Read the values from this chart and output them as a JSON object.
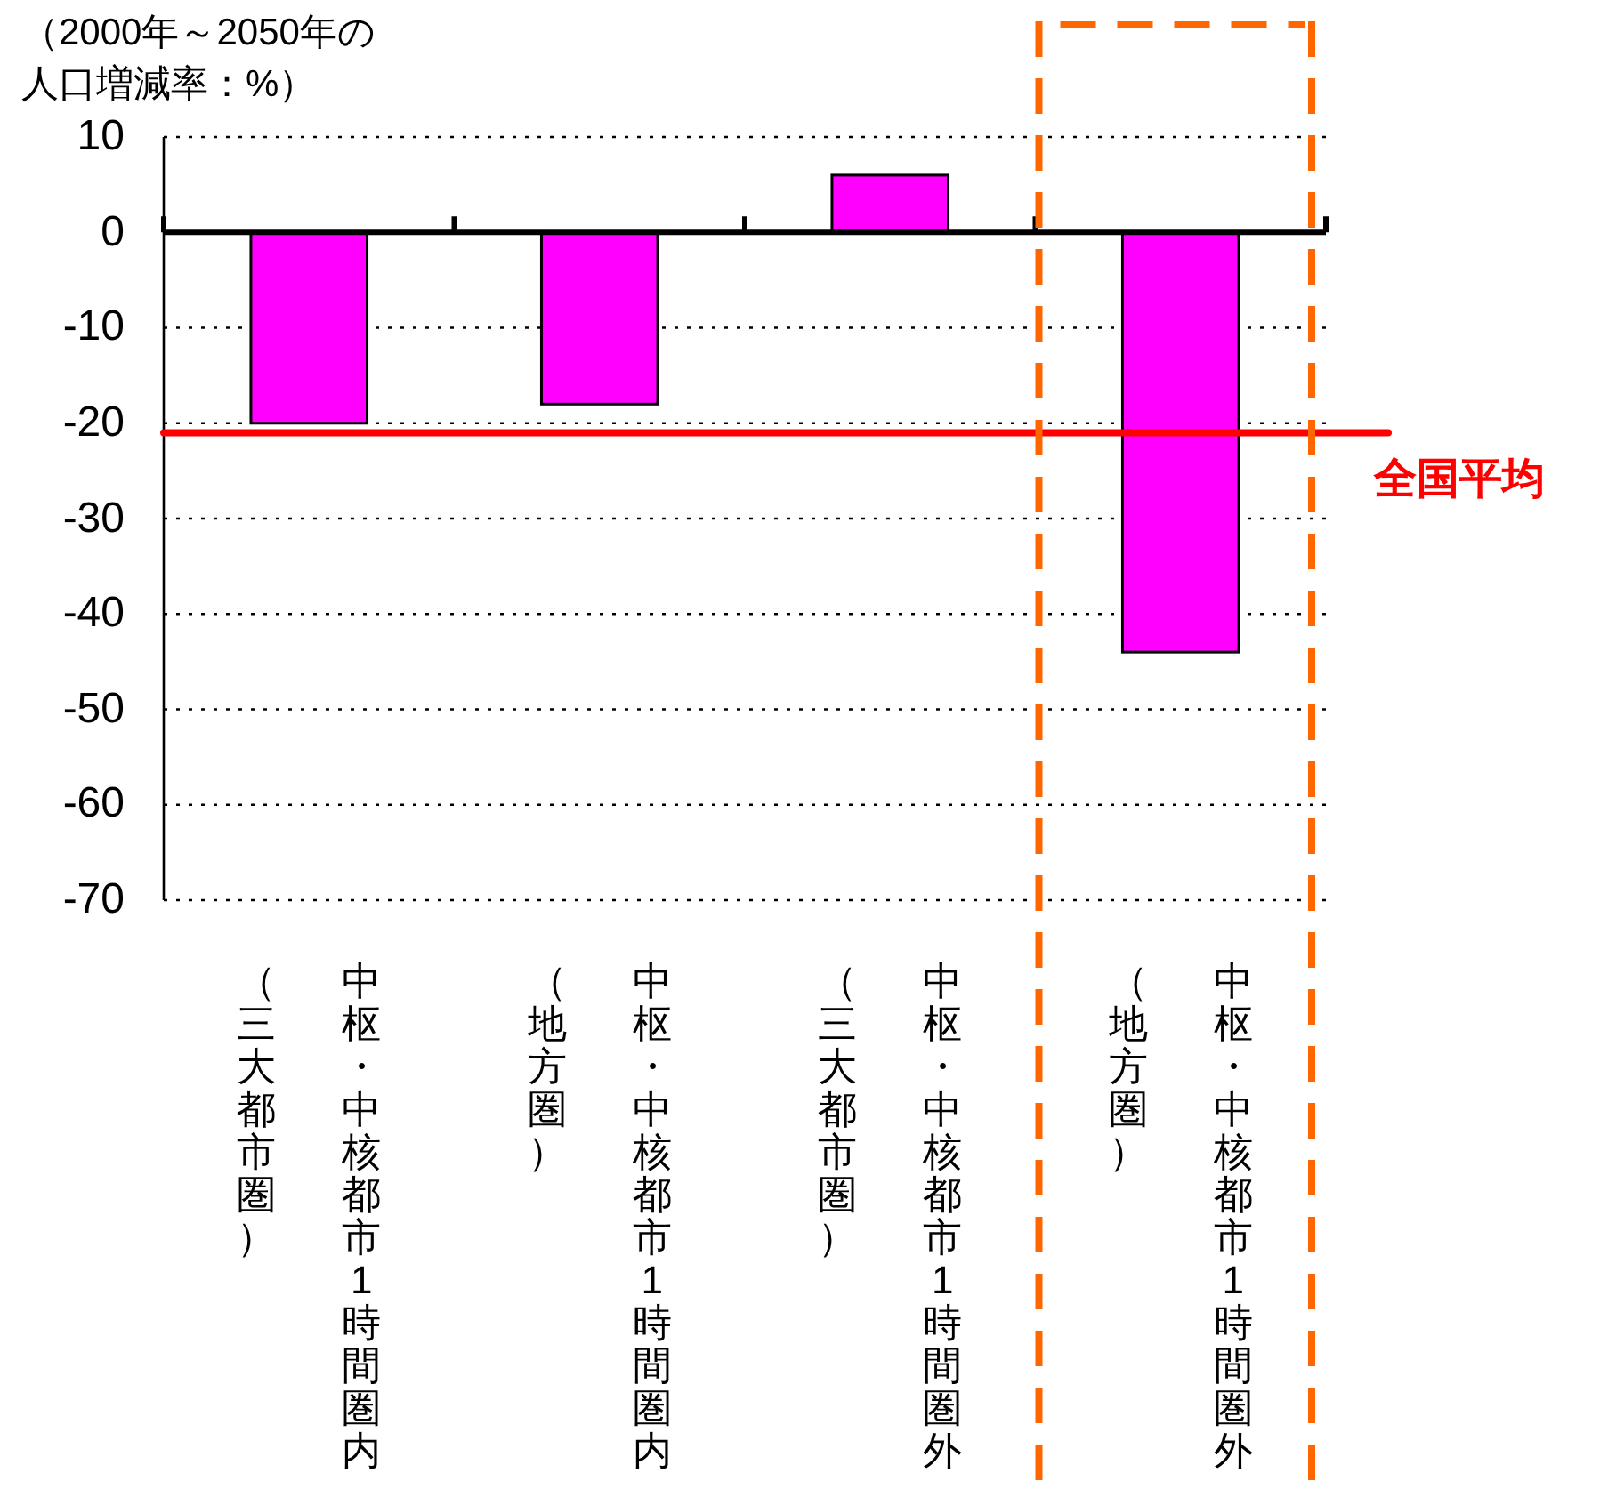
{
  "chart_data": {
    "type": "bar",
    "ylabel": "（2000年～2050年の人口増減率：%）",
    "categories": [
      "中枢・中核都市1時間圏内（三大都市圏）",
      "中枢・中核都市1時間圏内（地方圏）",
      "中枢・中核都市1時間圏外（三大都市圏）",
      "中枢・中核都市1時間圏外（地方圏）"
    ],
    "values": [
      -20,
      -18,
      6,
      -44
    ],
    "color": "#ff00ff",
    "ylim": [
      -70,
      10
    ],
    "yticks": [
      -70,
      -60,
      -50,
      -40,
      -30,
      -20,
      -10,
      0,
      10
    ],
    "grid": "y",
    "ref_lines": [
      {
        "axis": "y",
        "value": -21,
        "label": "全国平均",
        "color": "#ff0000"
      }
    ]
  }
}
